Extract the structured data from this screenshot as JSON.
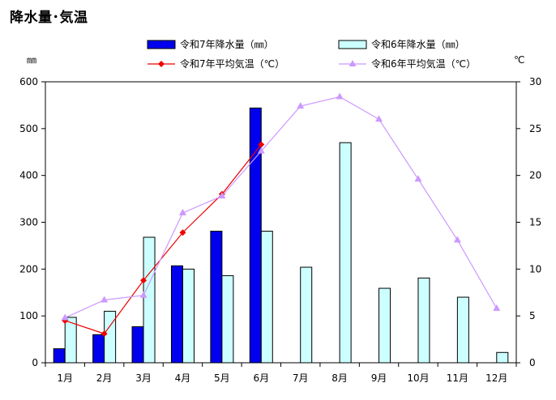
{
  "page": {
    "title": "降水量･気温"
  },
  "chart_data": {
    "type": "bar",
    "title": "降水量･気温",
    "categories": [
      "1月",
      "2月",
      "3月",
      "4月",
      "5月",
      "6月",
      "7月",
      "8月",
      "9月",
      "10月",
      "11月",
      "12月"
    ],
    "left_axis": {
      "unit": "㎜",
      "range": [
        0,
        600
      ],
      "ticks": [
        0,
        100,
        200,
        300,
        400,
        500,
        600
      ]
    },
    "right_axis": {
      "unit": "℃",
      "range": [
        0,
        30
      ],
      "ticks": [
        0,
        5,
        10,
        15,
        20,
        25,
        30
      ]
    },
    "grid": false,
    "legend_position": "top",
    "series": [
      {
        "name": "令和7年降水量（㎜）",
        "kind": "bar",
        "axis": "left",
        "color": "#0000ee",
        "values": [
          30,
          60,
          77,
          207,
          281,
          544,
          null,
          null,
          null,
          null,
          null,
          null
        ]
      },
      {
        "name": "令和6年降水量（㎜）",
        "kind": "bar",
        "axis": "left",
        "color": "#ccffff",
        "values": [
          97,
          110,
          268,
          200,
          186,
          281,
          204,
          470,
          159,
          181,
          140,
          22
        ]
      },
      {
        "name": "令和7年平均気温（℃）",
        "kind": "line",
        "axis": "right",
        "color": "#ee0000",
        "marker": "diamond",
        "values": [
          4.5,
          3.1,
          8.8,
          13.9,
          18.0,
          23.3,
          null,
          null,
          null,
          null,
          null,
          null
        ]
      },
      {
        "name": "令和6年平均気温（℃）",
        "kind": "line",
        "axis": "right",
        "color": "#cc99ff",
        "marker": "triangle",
        "values": [
          4.8,
          6.7,
          7.2,
          16.0,
          17.8,
          22.6,
          27.4,
          28.4,
          26.0,
          19.6,
          13.1,
          5.8
        ]
      }
    ]
  }
}
